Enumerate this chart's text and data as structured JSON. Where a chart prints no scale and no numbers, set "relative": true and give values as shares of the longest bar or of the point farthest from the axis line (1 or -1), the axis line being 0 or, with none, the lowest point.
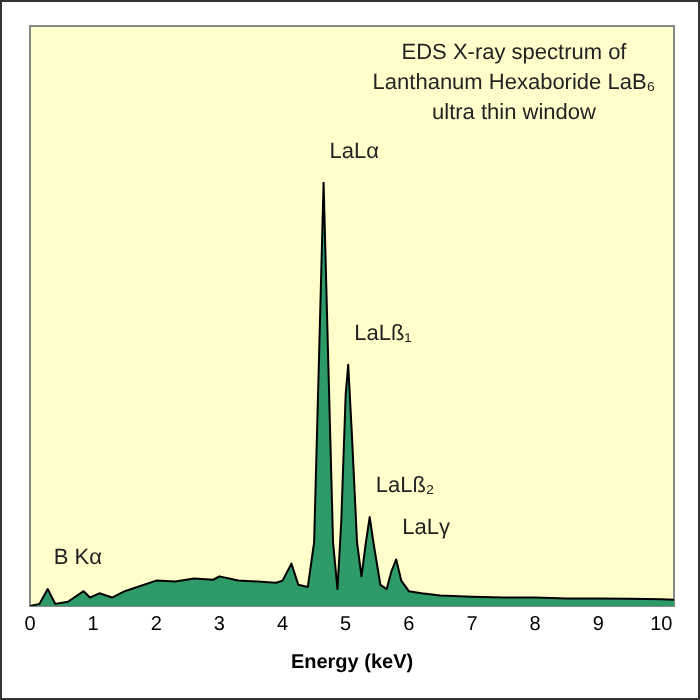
{
  "chart_data": {
    "type": "area",
    "relative": true,
    "title": "EDS X-ray spectrum of\nLanthanum Hexaboride LaB₆\nultra thin window",
    "xlabel": "Energy (keV)",
    "xlim": [
      0,
      10.2
    ],
    "xticks": [
      0,
      1,
      2,
      3,
      4,
      5,
      6,
      7,
      8,
      9,
      10
    ],
    "legend": false,
    "marker": "none",
    "series": [
      {
        "color": "#2e9a68",
        "x": [
          0,
          0.15,
          0.28,
          0.4,
          0.6,
          0.85,
          0.95,
          1.1,
          1.3,
          1.5,
          1.7,
          2.0,
          2.3,
          2.6,
          2.9,
          3.0,
          3.3,
          3.6,
          3.9,
          4.0,
          4.14,
          4.25,
          4.4,
          4.5,
          4.58,
          4.65,
          4.72,
          4.8,
          4.87,
          4.93,
          5.0,
          5.04,
          5.1,
          5.18,
          5.25,
          5.32,
          5.38,
          5.45,
          5.55,
          5.65,
          5.72,
          5.8,
          5.88,
          6.0,
          6.2,
          6.5,
          7,
          7.5,
          8,
          8.5,
          9,
          9.5,
          10,
          10.2
        ],
        "values": [
          0,
          0.005,
          0.04,
          0.005,
          0.01,
          0.035,
          0.02,
          0.03,
          0.02,
          0.035,
          0.045,
          0.06,
          0.058,
          0.065,
          0.062,
          0.07,
          0.06,
          0.058,
          0.055,
          0.06,
          0.1,
          0.05,
          0.045,
          0.15,
          0.6,
          1.0,
          0.6,
          0.15,
          0.04,
          0.2,
          0.5,
          0.57,
          0.4,
          0.15,
          0.07,
          0.15,
          0.21,
          0.14,
          0.05,
          0.04,
          0.08,
          0.11,
          0.06,
          0.035,
          0.03,
          0.025,
          0.022,
          0.02,
          0.02,
          0.018,
          0.018,
          0.017,
          0.016,
          0.015
        ]
      }
    ],
    "annotations": [
      {
        "text": "LaLα",
        "x": 4.65,
        "y": 1.0
      },
      {
        "text": "LaLß₁",
        "x": 5.04,
        "y": 0.57
      },
      {
        "text": "LaLß₂",
        "x": 5.38,
        "y": 0.21
      },
      {
        "text": "LaLγ",
        "x": 5.8,
        "y": 0.11
      },
      {
        "text": "B Kα",
        "x": 0.28,
        "y": 0.04
      }
    ]
  }
}
